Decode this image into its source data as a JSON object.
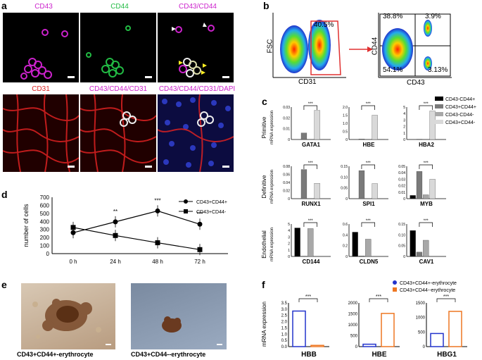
{
  "panels": {
    "a": "a",
    "b": "b",
    "c": "c",
    "d": "d",
    "e": "e",
    "f": "f"
  },
  "panel_a": {
    "row1_labels": [
      "CD43",
      "CD44",
      "CD43/CD44"
    ],
    "row2_labels": [
      "CD31",
      "CD43/CD44/CD31",
      "CD43/CD44/CD31/DAPI"
    ],
    "colors": {
      "magenta": "#cc22cc",
      "green": "#22bb44",
      "red": "#dd2222",
      "blue": "#3344dd"
    }
  },
  "panel_b": {
    "left": {
      "gate_pct": "40.5%",
      "xlabel": "CD31",
      "ylabel": "FSC"
    },
    "right": {
      "q_tl": "38.8%",
      "q_tr": "3.9%",
      "q_bl": "54.1%",
      "q_br": "3.13%",
      "xlabel": "CD43",
      "ylabel": "CD44"
    }
  },
  "panel_c": {
    "legend": [
      "CD43-CD44+",
      "CD43+CD44+",
      "CD43-CD44-",
      "CD43+CD44-"
    ],
    "legend_colors": [
      "#000000",
      "#7a7a7a",
      "#a8a8a8",
      "#d9d9d9"
    ],
    "ylabel": "mRNA expression",
    "row_labels": [
      "Primitive",
      "Definitive",
      "Endothelial"
    ],
    "sig": "***"
  },
  "panel_d": {
    "ylabel": "number of cells",
    "legend": [
      "CD43+CD44+",
      "CD43+CD44-"
    ],
    "sig": [
      "**",
      "***",
      "***"
    ]
  },
  "panel_e": {
    "captions": [
      "CD43+CD44+-erythrocyte",
      "CD43+CD44--erythrocyte"
    ]
  },
  "panel_f": {
    "ylabel": "mRNA expression",
    "legend": [
      "CD43+CD44+-erythrocyte",
      "CD43+CD44--erythrocyte"
    ],
    "colors": [
      "#2233cc",
      "#ee7722"
    ],
    "sig": "***"
  },
  "chart_data": [
    {
      "type": "bar",
      "categories": [
        "GATA1"
      ],
      "series": [
        {
          "name": "CD43-CD44+",
          "values": [
            0.0
          ]
        },
        {
          "name": "CD43+CD44+",
          "values": [
            0.006
          ]
        },
        {
          "name": "CD43-CD44-",
          "values": [
            0.0
          ]
        },
        {
          "name": "CD43+CD44-",
          "values": [
            0.027
          ]
        }
      ],
      "ylim": [
        0,
        0.03
      ],
      "yticks": [
        "0",
        "0.01",
        "0.02",
        "0.03"
      ]
    },
    {
      "type": "bar",
      "categories": [
        "HBE"
      ],
      "series": [
        {
          "name": "CD43-CD44+",
          "values": [
            0.0
          ]
        },
        {
          "name": "CD43+CD44+",
          "values": [
            0.03
          ]
        },
        {
          "name": "CD43-CD44-",
          "values": [
            0.0
          ]
        },
        {
          "name": "CD43+CD44-",
          "values": [
            1.5
          ]
        }
      ],
      "ylim": [
        0,
        2.0
      ],
      "yticks": [
        "0",
        "0.5",
        "1.0",
        "1.5",
        "2.0"
      ]
    },
    {
      "type": "bar",
      "categories": [
        "HBA2"
      ],
      "series": [
        {
          "name": "CD43-CD44+",
          "values": [
            0.0
          ]
        },
        {
          "name": "CD43+CD44+",
          "values": [
            0.05
          ]
        },
        {
          "name": "CD43-CD44-",
          "values": [
            0.0
          ]
        },
        {
          "name": "CD43+CD44-",
          "values": [
            4.4
          ]
        }
      ],
      "ylim": [
        0,
        5
      ],
      "yticks": [
        "0",
        "1",
        "2",
        "3",
        "4",
        "5"
      ]
    },
    {
      "type": "bar",
      "categories": [
        "RUNX1"
      ],
      "series": [
        {
          "name": "CD43-CD44+",
          "values": [
            0.0
          ]
        },
        {
          "name": "CD43+CD44+",
          "values": [
            0.072
          ]
        },
        {
          "name": "CD43-CD44-",
          "values": [
            0.0
          ]
        },
        {
          "name": "CD43+CD44-",
          "values": [
            0.038
          ]
        }
      ],
      "ylim": [
        0,
        0.08
      ],
      "yticks": [
        "0",
        "0.02",
        "0.04",
        "0.06",
        "0.08"
      ]
    },
    {
      "type": "bar",
      "categories": [
        "SPI1"
      ],
      "series": [
        {
          "name": "CD43-CD44+",
          "values": [
            0.0
          ]
        },
        {
          "name": "CD43+CD44+",
          "values": [
            0.13
          ]
        },
        {
          "name": "CD43-CD44-",
          "values": [
            0.0
          ]
        },
        {
          "name": "CD43+CD44-",
          "values": [
            0.07
          ]
        }
      ],
      "ylim": [
        0,
        0.15
      ],
      "yticks": [
        "0",
        "0.05",
        "0.10",
        "0.15"
      ]
    },
    {
      "type": "bar",
      "categories": [
        "MYB"
      ],
      "series": [
        {
          "name": "CD43-CD44+",
          "values": [
            0.005
          ]
        },
        {
          "name": "CD43+CD44+",
          "values": [
            0.042
          ]
        },
        {
          "name": "CD43-CD44-",
          "values": [
            0.006
          ]
        },
        {
          "name": "CD43+CD44-",
          "values": [
            0.03
          ]
        }
      ],
      "ylim": [
        0,
        0.05
      ],
      "yticks": [
        "0",
        "0.01",
        "0.02",
        "0.03",
        "0.04",
        "0.05"
      ]
    },
    {
      "type": "bar",
      "categories": [
        "CD144"
      ],
      "series": [
        {
          "name": "CD43-CD44+",
          "values": [
            4.4
          ]
        },
        {
          "name": "CD43+CD44+",
          "values": [
            0.05
          ]
        },
        {
          "name": "CD43-CD44-",
          "values": [
            4.3
          ]
        },
        {
          "name": "CD43+CD44-",
          "values": [
            0.0
          ]
        }
      ],
      "ylim": [
        0,
        5
      ],
      "yticks": [
        "0",
        "1",
        "2",
        "3",
        "4",
        "5"
      ]
    },
    {
      "type": "bar",
      "categories": [
        "CLDN5"
      ],
      "series": [
        {
          "name": "CD43-CD44+",
          "values": [
            0.45
          ]
        },
        {
          "name": "CD43+CD44+",
          "values": [
            0.01
          ]
        },
        {
          "name": "CD43-CD44-",
          "values": [
            0.32
          ]
        },
        {
          "name": "CD43+CD44-",
          "values": [
            0.0
          ]
        }
      ],
      "ylim": [
        0,
        0.6
      ],
      "yticks": [
        "0",
        "0.2",
        "0.4",
        "0.6"
      ]
    },
    {
      "type": "bar",
      "categories": [
        "CAV1"
      ],
      "series": [
        {
          "name": "CD43-CD44+",
          "values": [
            0.12
          ]
        },
        {
          "name": "CD43+CD44+",
          "values": [
            0.02
          ]
        },
        {
          "name": "CD43-CD44-",
          "values": [
            0.075
          ]
        },
        {
          "name": "CD43+CD44-",
          "values": [
            0.0
          ]
        }
      ],
      "ylim": [
        0,
        0.15
      ],
      "yticks": [
        "0",
        "0.05",
        "0.10",
        "0.15"
      ]
    },
    {
      "type": "line",
      "x": [
        "0 h",
        "24 h",
        "48 h",
        "72 h"
      ],
      "series": [
        {
          "name": "CD43+CD44+",
          "values": [
            260,
            395,
            530,
            365
          ]
        },
        {
          "name": "CD43+CD44-",
          "values": [
            325,
            225,
            135,
            50
          ]
        }
      ],
      "ylim": [
        0,
        700
      ],
      "yticks": [
        "0",
        "100",
        "200",
        "300",
        "400",
        "500",
        "600",
        "700"
      ],
      "ylabel": "number of cells"
    },
    {
      "type": "bar",
      "categories": [
        "HBB"
      ],
      "series": [
        {
          "name": "CD43+CD44+-erythrocyte",
          "values": [
            2.85
          ]
        },
        {
          "name": "CD43+CD44--erythrocyte",
          "values": [
            0.1
          ]
        }
      ],
      "ylim": [
        0,
        3.5
      ],
      "yticks": [
        "0.0",
        "0.5",
        "1.0",
        "1.5",
        "2.0",
        "2.5",
        "3.0",
        "3.5"
      ]
    },
    {
      "type": "bar",
      "categories": [
        "HBE"
      ],
      "series": [
        {
          "name": "CD43+CD44+-erythrocyte",
          "values": [
            110
          ]
        },
        {
          "name": "CD43+CD44--erythrocyte",
          "values": [
            1520
          ]
        }
      ],
      "ylim": [
        0,
        2000
      ],
      "yticks": [
        "0",
        "500",
        "1000",
        "1500",
        "2000"
      ]
    },
    {
      "type": "bar",
      "categories": [
        "HBG1"
      ],
      "series": [
        {
          "name": "CD43+CD44+-erythrocyte",
          "values": [
            450
          ]
        },
        {
          "name": "CD43+CD44--erythrocyte",
          "values": [
            1210
          ]
        }
      ],
      "ylim": [
        0,
        1500
      ],
      "yticks": [
        "0",
        "500",
        "1000",
        "1500"
      ]
    }
  ]
}
